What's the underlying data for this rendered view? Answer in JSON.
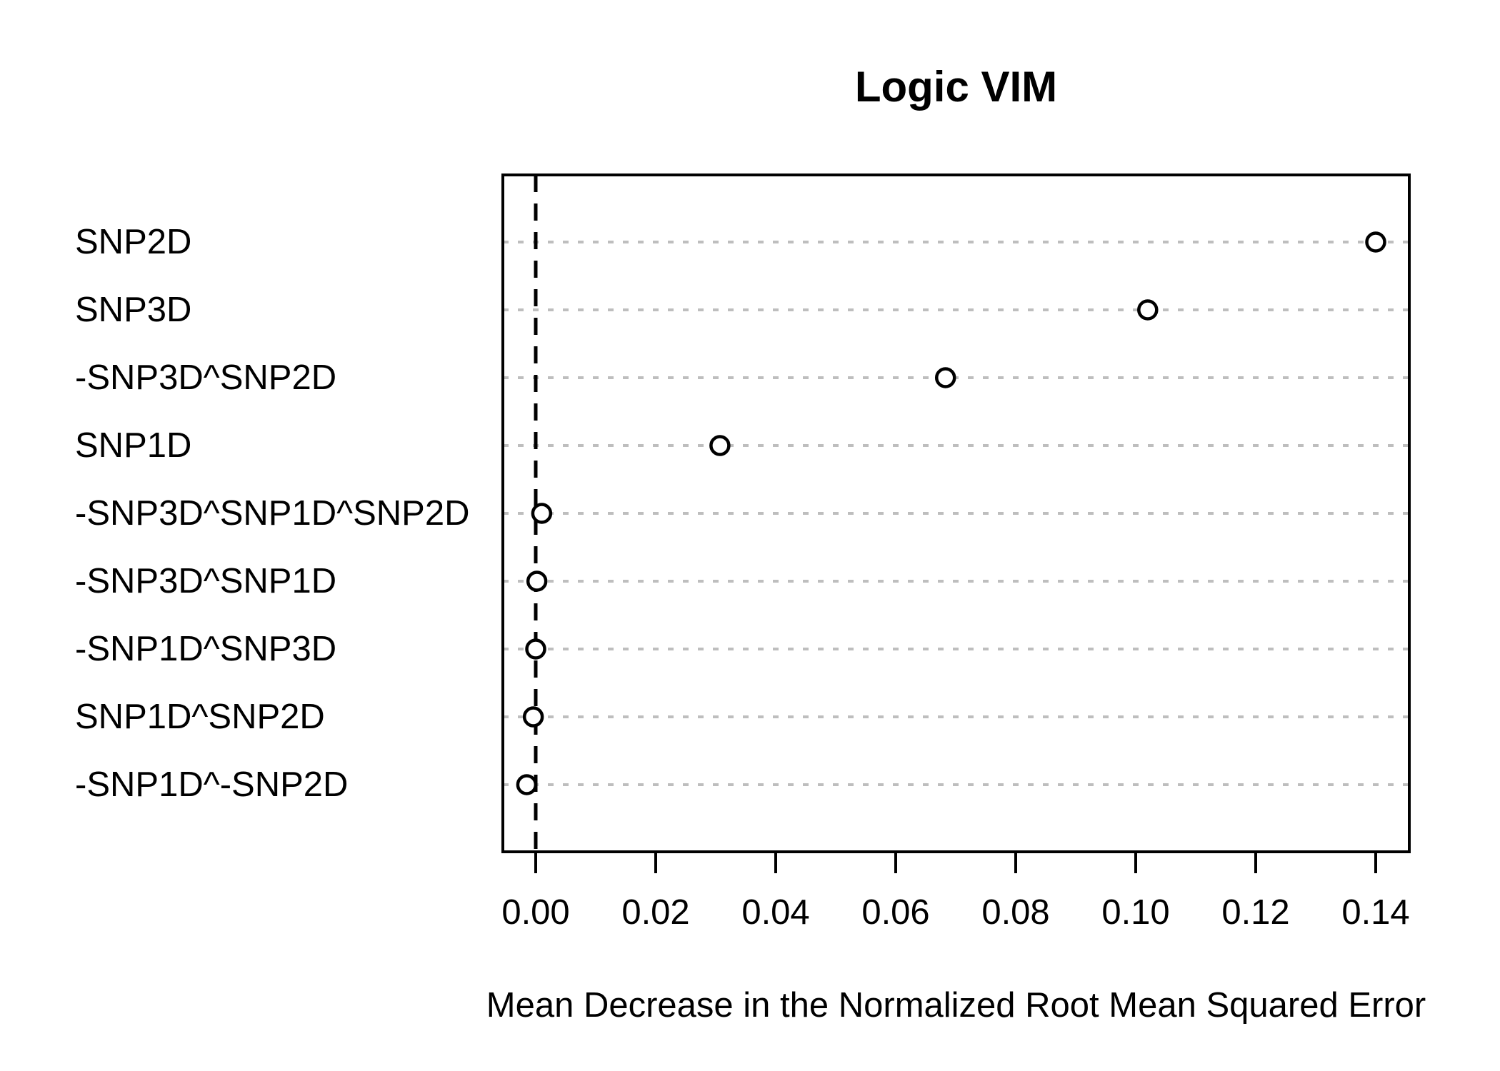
{
  "chart": {
    "title": "Logic VIM",
    "xlabel": "Mean Decrease in the Normalized Root Mean Squared Error"
  },
  "chart_data": {
    "type": "scatter",
    "subtype": "cleveland-dot-plot",
    "title": "Logic VIM",
    "xlabel": "Mean Decrease in the Normalized Root Mean Squared Error",
    "ylabel": "",
    "categories": [
      "SNP2D",
      "SNP3D",
      "-SNP3D^SNP2D",
      "SNP1D",
      "-SNP3D^SNP1D^SNP2D",
      "-SNP3D^SNP1D",
      "-SNP1D^SNP3D",
      "SNP1D^SNP2D",
      "-SNP1D^-SNP2D"
    ],
    "values": [
      0.14,
      0.102,
      0.0683,
      0.0307,
      0.001,
      0.0002,
      0.0,
      -0.0004,
      -0.0015
    ],
    "xlim": [
      -0.0055,
      0.1455
    ],
    "xticks": [
      0.0,
      0.02,
      0.04,
      0.06,
      0.08,
      0.1,
      0.12,
      0.14
    ],
    "xtick_labels": [
      "0.00",
      "0.02",
      "0.04",
      "0.06",
      "0.08",
      "0.10",
      "0.12",
      "0.14"
    ],
    "grid": "horizontal dotted line per category",
    "legend": "none",
    "reference_line_x": 0,
    "reference_line_style": "dashed",
    "marker": "open-circle",
    "colors": {
      "marker_stroke": "#000000",
      "marker_fill": "#ffffff",
      "grid_line": "#bebebe",
      "reference_line": "#000000",
      "axis": "#000000",
      "background": "#ffffff"
    }
  }
}
